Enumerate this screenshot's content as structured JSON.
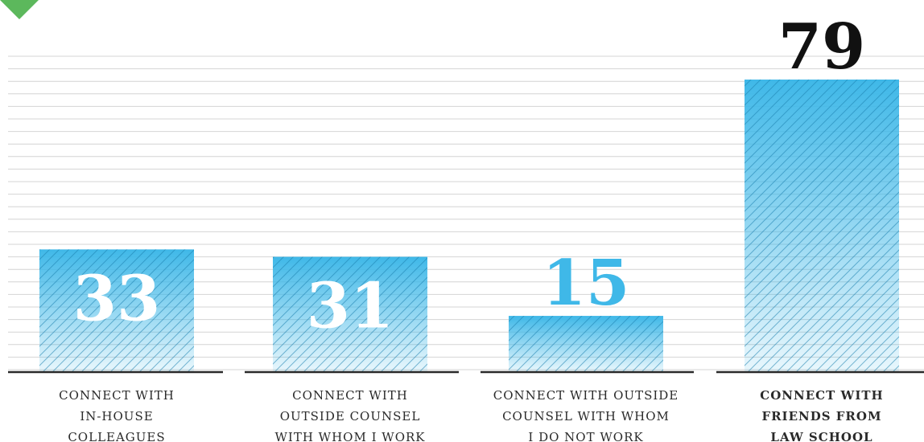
{
  "colors": {
    "bar": "#3fb8e8",
    "gridline": "#d4d4d4",
    "baseline": "#2a2a2a",
    "label_text": "#2a2a2a",
    "value_dark": "#111111",
    "value_blue": "#3fb8e8",
    "corner_mark": "#5cb85c"
  },
  "chart_data": {
    "type": "bar",
    "title": "",
    "xlabel": "",
    "ylabel": "",
    "ylim": [
      0,
      88
    ],
    "grid": true,
    "categories": [
      "CONNECT WITH IN-HOUSE COLLEAGUES",
      "CONNECT WITH OUTSIDE COUNSEL WITH WHOM I WORK",
      "CONNECT WITH OUTSIDE COUNSEL WITH WHOM I DO NOT WORK",
      "CONNECT WITH FRIENDS FROM LAW SCHOOL"
    ],
    "category_lines": [
      [
        "CONNECT WITH",
        "IN-HOUSE",
        "COLLEAGUES"
      ],
      [
        "CONNECT WITH",
        "OUTSIDE COUNSEL",
        "WITH WHOM I WORK"
      ],
      [
        "CONNECT WITH OUTSIDE",
        "COUNSEL WITH WHOM",
        "I DO NOT WORK"
      ],
      [
        "CONNECT WITH",
        "FRIENDS FROM",
        "LAW SCHOOL"
      ]
    ],
    "values": [
      33,
      31,
      15,
      79
    ],
    "data_labels": [
      "33",
      "31",
      "15",
      "79"
    ],
    "label_placement": [
      "inside",
      "inside",
      "above",
      "above"
    ],
    "highlight": "CONNECT WITH FRIENDS FROM LAW SCHOOL"
  }
}
